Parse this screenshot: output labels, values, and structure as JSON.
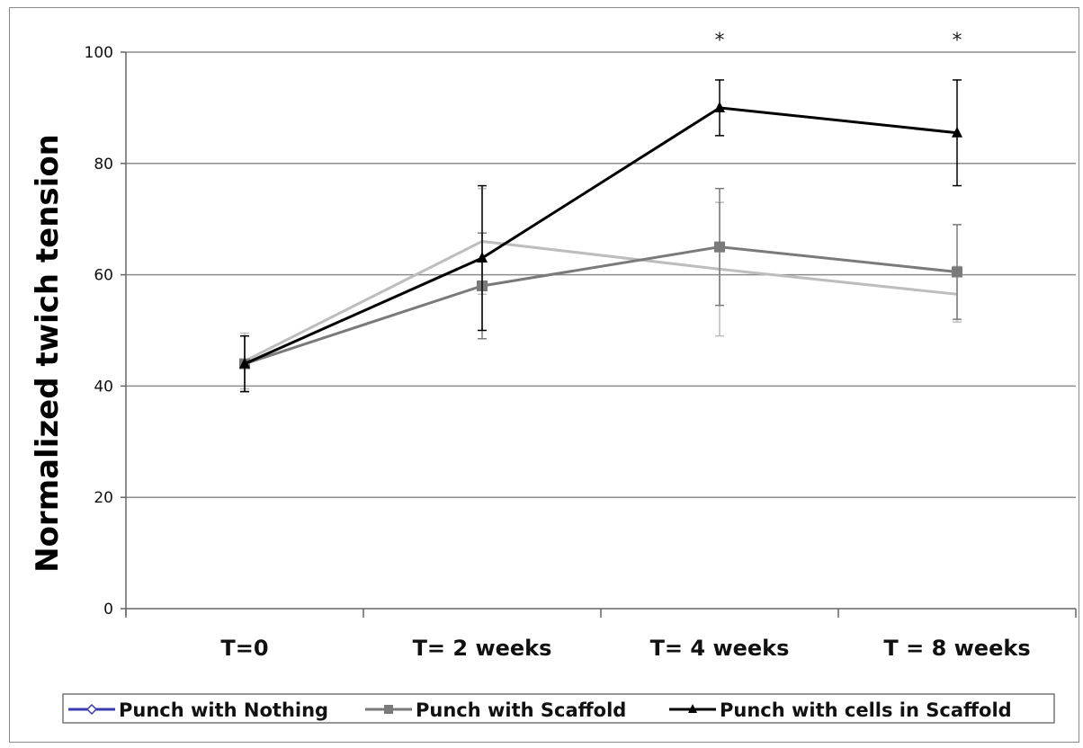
{
  "chart_data": {
    "type": "line",
    "ylabel": "Normalized twich tension",
    "xlabel": "",
    "ylim": [
      0,
      100
    ],
    "yticks": [
      "0",
      "20",
      "40",
      "60",
      "80",
      "100"
    ],
    "grid": true,
    "legend_position": "bottom",
    "categories": [
      "T=0",
      "T= 2 weeks",
      "T= 4 weeks",
      "T = 8 weeks"
    ],
    "series": [
      {
        "name": "Punch with Nothing",
        "color": "#bdbdbd",
        "marker": "diamond",
        "values": [
          44.5,
          66,
          61,
          56.5
        ],
        "error": [
          5,
          9.5,
          12,
          5
        ]
      },
      {
        "name": "Punch with Scaffold",
        "color": "#7a7a7a",
        "marker": "square",
        "values": [
          44,
          58,
          65,
          60.5
        ],
        "error": [
          5,
          9.5,
          10.5,
          8.5
        ]
      },
      {
        "name": "Punch with cells in Scaffold",
        "color": "#000000",
        "marker": "triangle",
        "values": [
          44,
          63,
          90,
          85.5
        ],
        "error": [
          5,
          13,
          5,
          9.5
        ]
      }
    ],
    "annotations": [
      {
        "category": "T= 4 weeks",
        "text": "*"
      },
      {
        "category": "T = 8 weeks",
        "text": "*"
      }
    ]
  }
}
